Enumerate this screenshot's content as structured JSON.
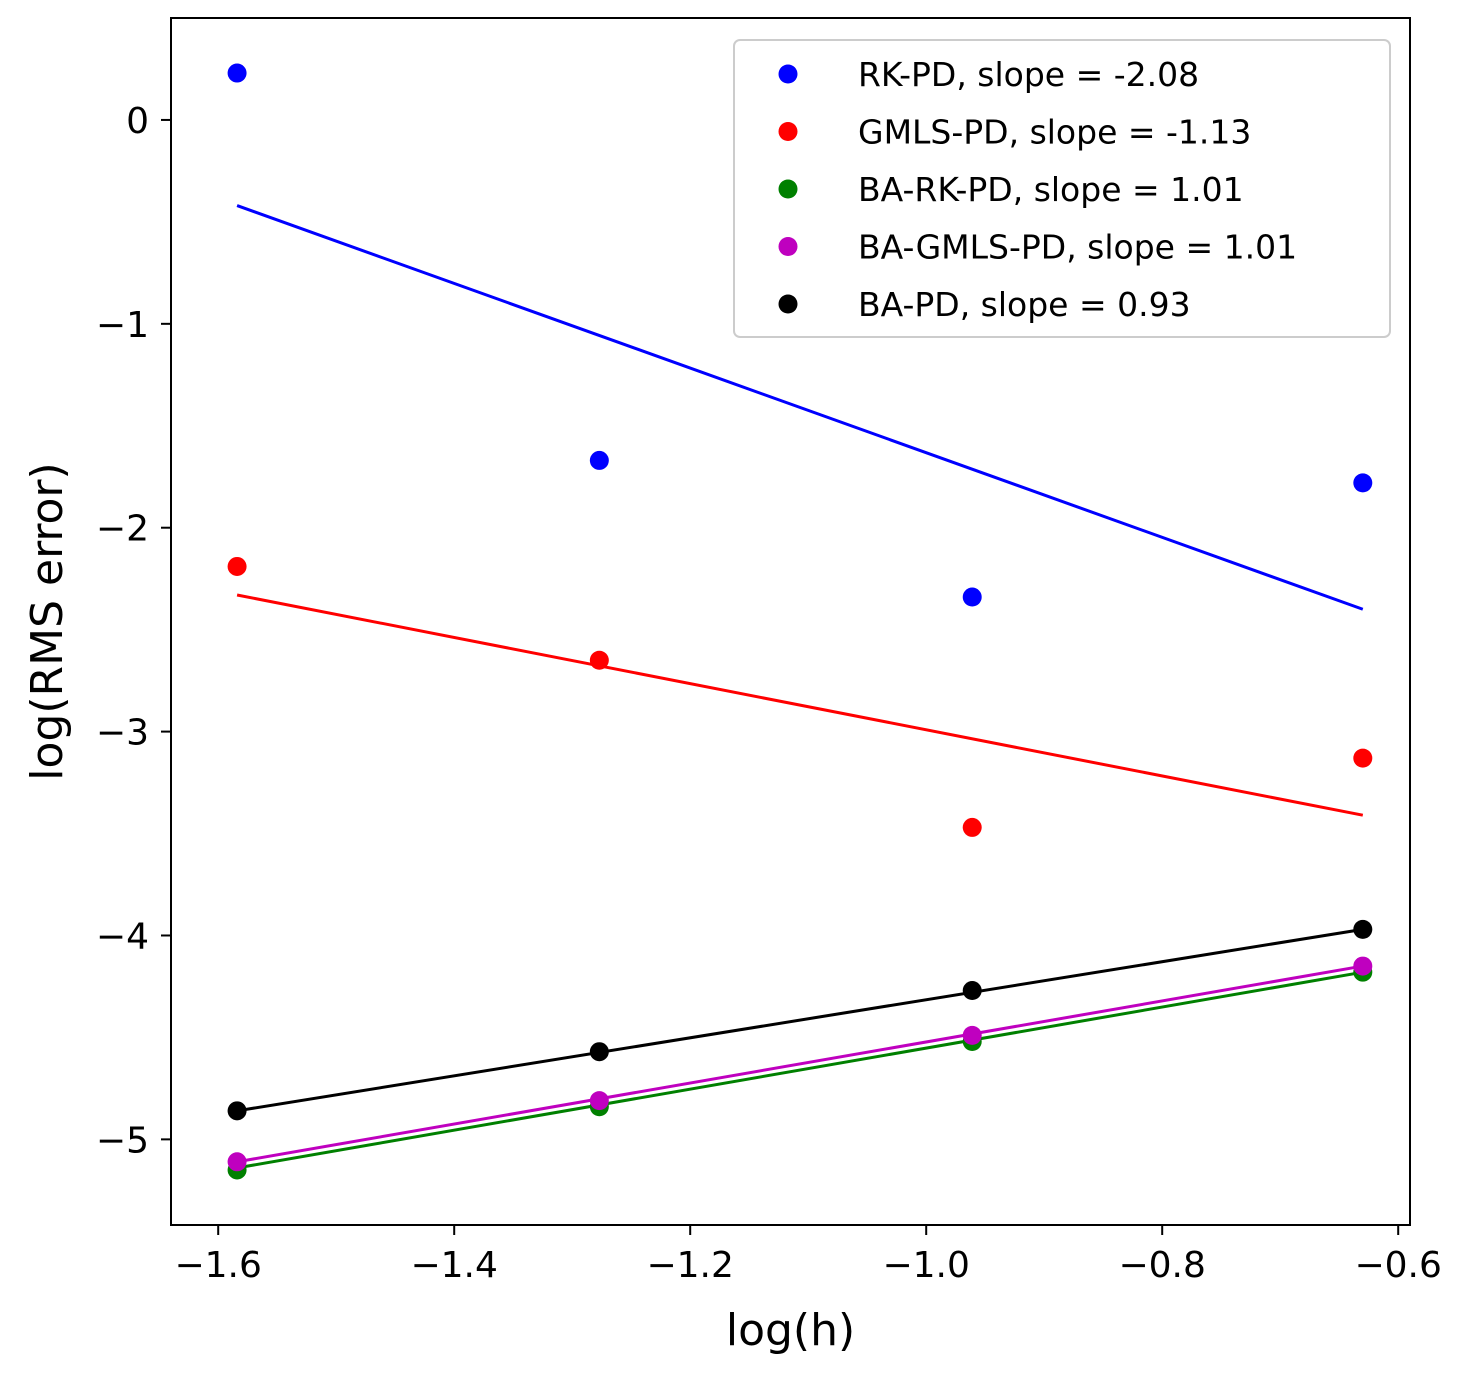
{
  "chart_data": {
    "type": "scatter",
    "title": "",
    "xlabel": "log(h)",
    "ylabel": "log(RMS error)",
    "xlim": [
      -1.64,
      -0.59
    ],
    "ylim": [
      -5.42,
      0.5
    ],
    "grid": false,
    "legend_position": "top-right",
    "x": [
      -1.584,
      -1.277,
      -0.961,
      -0.63
    ],
    "xticks": [
      -1.6,
      -1.4,
      -1.2,
      -1.0,
      -0.8,
      -0.6
    ],
    "xtick_labels": [
      "−1.6",
      "−1.4",
      "−1.2",
      "−1.0",
      "−0.8",
      "−0.6"
    ],
    "yticks": [
      0,
      -1,
      -2,
      -3,
      -4,
      -5
    ],
    "ytick_labels": [
      "0",
      "−1",
      "−2",
      "−3",
      "−4",
      "−5"
    ],
    "series": [
      {
        "name": "RK-PD, slope = -2.08",
        "color": "#0000ff",
        "points": [
          0.23,
          -1.67,
          -2.34,
          -1.78
        ],
        "fit": [
          -0.42,
          -2.4
        ]
      },
      {
        "name": "GMLS-PD, slope = -1.13",
        "color": "#ff0000",
        "points": [
          -2.19,
          -2.65,
          -3.47,
          -3.13
        ],
        "fit": [
          -2.33,
          -3.41
        ]
      },
      {
        "name": "BA-RK-PD, slope = 1.01",
        "color": "#008000",
        "points": [
          -5.15,
          -4.84,
          -4.52,
          -4.18
        ],
        "fit": [
          -5.14,
          -4.18
        ]
      },
      {
        "name": "BA-GMLS-PD, slope = 1.01",
        "color": "#bf00bf",
        "points": [
          -5.11,
          -4.81,
          -4.49,
          -4.15
        ],
        "fit": [
          -5.11,
          -4.15
        ]
      },
      {
        "name": "BA-PD, slope = 0.93",
        "color": "#000000",
        "points": [
          -4.86,
          -4.57,
          -4.27,
          -3.97
        ],
        "fit": [
          -4.86,
          -3.97
        ]
      }
    ]
  }
}
